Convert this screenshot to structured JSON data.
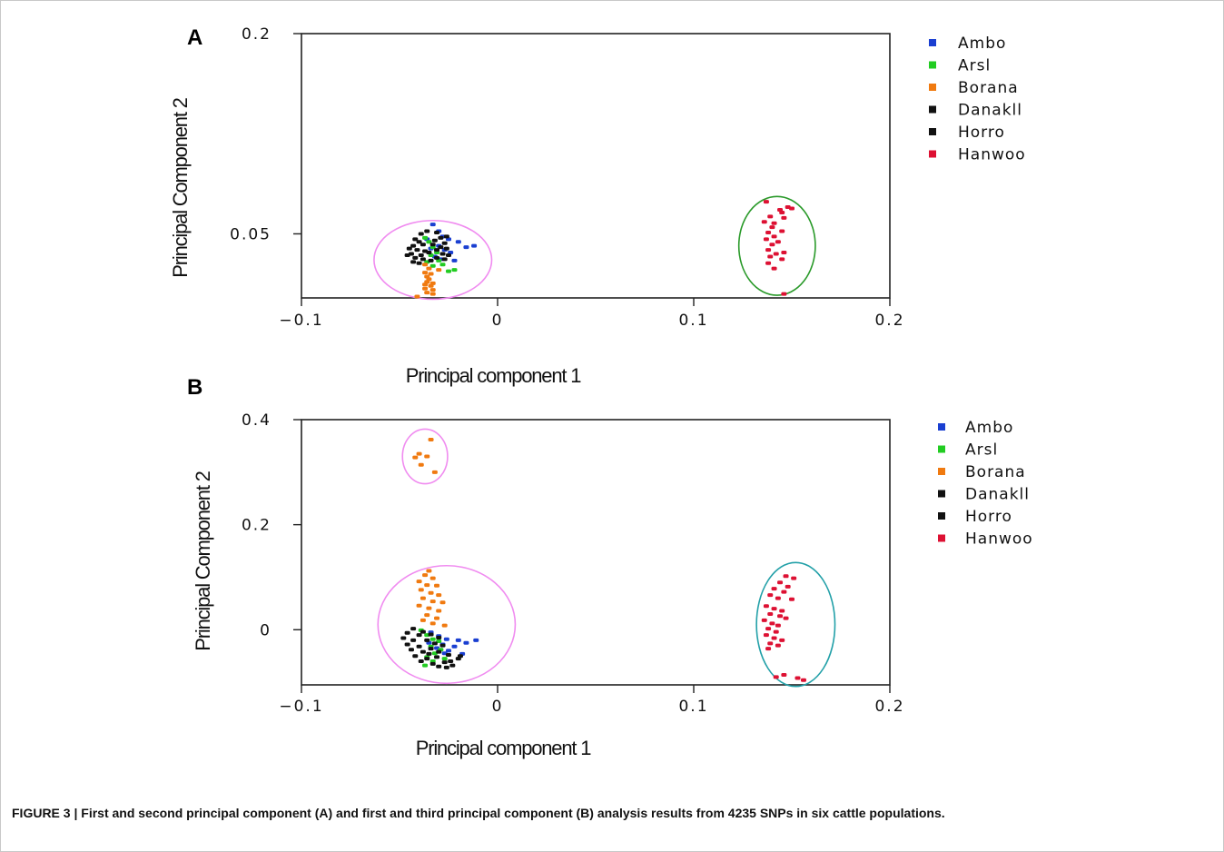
{
  "caption": "FIGURE 3 | First and second principal component (A) and first and third principal component (B) analysis results from 4235 SNPs in six cattle populations.",
  "chart_data": [
    {
      "type": "scatter",
      "panel": "A",
      "xlabel": "Principal component 1",
      "ylabel": "Principal Component 2",
      "xlim": [
        -0.1,
        0.2
      ],
      "ylim": [
        0.002,
        0.2
      ],
      "xticks": [
        "-0.1",
        "0",
        "0.1",
        "0.2"
      ],
      "yticks": [
        "0.2",
        "0.05"
      ],
      "ytick_values": [
        0.2,
        0.05
      ],
      "legend_position": "right",
      "series": [
        {
          "name": "Ambo",
          "color": "#1a3fd1",
          "points": [
            [
              -0.033,
              0.057
            ],
            [
              -0.03,
              0.052
            ],
            [
              -0.028,
              0.048
            ],
            [
              -0.025,
              0.046
            ],
            [
              -0.02,
              0.044
            ],
            [
              -0.012,
              0.041
            ],
            [
              -0.016,
              0.04
            ],
            [
              -0.03,
              0.041
            ],
            [
              -0.034,
              0.039
            ],
            [
              -0.027,
              0.038
            ],
            [
              -0.024,
              0.036
            ],
            [
              -0.032,
              0.033
            ],
            [
              -0.029,
              0.031
            ],
            [
              -0.022,
              0.03
            ],
            [
              -0.036,
              0.046
            ]
          ]
        },
        {
          "name": "Arsl",
          "color": "#22cc22",
          "points": [
            [
              -0.037,
              0.047
            ],
            [
              -0.035,
              0.044
            ],
            [
              -0.033,
              0.04
            ],
            [
              -0.031,
              0.036
            ],
            [
              -0.03,
              0.03
            ],
            [
              -0.036,
              0.029
            ],
            [
              -0.033,
              0.026
            ],
            [
              -0.028,
              0.027
            ],
            [
              -0.022,
              0.023
            ],
            [
              -0.025,
              0.022
            ],
            [
              -0.034,
              0.034
            ]
          ]
        },
        {
          "name": "Borana",
          "color": "#f07a10",
          "points": [
            [
              -0.037,
              0.027
            ],
            [
              -0.035,
              0.024
            ],
            [
              -0.03,
              0.023
            ],
            [
              -0.037,
              0.021
            ],
            [
              -0.034,
              0.02
            ],
            [
              -0.036,
              0.018
            ],
            [
              -0.035,
              0.016
            ],
            [
              -0.036,
              0.014
            ],
            [
              -0.033,
              0.013
            ],
            [
              -0.037,
              0.012
            ],
            [
              -0.034,
              0.011
            ],
            [
              -0.037,
              0.009
            ],
            [
              -0.033,
              0.008
            ],
            [
              -0.036,
              0.006
            ],
            [
              -0.033,
              0.005
            ],
            [
              -0.041,
              0.003
            ]
          ]
        },
        {
          "name": "Danakll",
          "color": "#111111",
          "points": [
            [
              -0.036,
              0.052
            ],
            [
              -0.039,
              0.05
            ],
            [
              -0.026,
              0.048
            ],
            [
              -0.042,
              0.046
            ],
            [
              -0.04,
              0.044
            ],
            [
              -0.038,
              0.042
            ],
            [
              -0.043,
              0.041
            ],
            [
              -0.041,
              0.038
            ],
            [
              -0.037,
              0.037
            ],
            [
              -0.044,
              0.035
            ],
            [
              -0.039,
              0.034
            ],
            [
              -0.035,
              0.036
            ],
            [
              -0.042,
              0.032
            ],
            [
              -0.038,
              0.031
            ],
            [
              -0.043,
              0.029
            ],
            [
              -0.04,
              0.028
            ]
          ]
        },
        {
          "name": "Horro",
          "color": "#111111",
          "points": [
            [
              -0.031,
              0.051
            ],
            [
              -0.029,
              0.047
            ],
            [
              -0.032,
              0.045
            ],
            [
              -0.027,
              0.043
            ],
            [
              -0.033,
              0.042
            ],
            [
              -0.029,
              0.04
            ],
            [
              -0.026,
              0.039
            ],
            [
              -0.031,
              0.038
            ],
            [
              -0.028,
              0.035
            ],
            [
              -0.025,
              0.034
            ],
            [
              -0.031,
              0.032
            ],
            [
              -0.027,
              0.031
            ],
            [
              -0.034,
              0.03
            ],
            [
              -0.045,
              0.039
            ],
            [
              -0.046,
              0.034
            ]
          ]
        },
        {
          "name": "Hanwoo",
          "color": "#dd1133",
          "points": [
            [
              0.137,
              0.074
            ],
            [
              0.148,
              0.07
            ],
            [
              0.144,
              0.068
            ],
            [
              0.15,
              0.069
            ],
            [
              0.145,
              0.066
            ],
            [
              0.139,
              0.063
            ],
            [
              0.146,
              0.062
            ],
            [
              0.136,
              0.059
            ],
            [
              0.141,
              0.058
            ],
            [
              0.14,
              0.055
            ],
            [
              0.145,
              0.052
            ],
            [
              0.138,
              0.051
            ],
            [
              0.141,
              0.048
            ],
            [
              0.137,
              0.046
            ],
            [
              0.143,
              0.044
            ],
            [
              0.14,
              0.042
            ],
            [
              0.138,
              0.038
            ],
            [
              0.146,
              0.036
            ],
            [
              0.142,
              0.035
            ],
            [
              0.139,
              0.033
            ],
            [
              0.145,
              0.031
            ],
            [
              0.138,
              0.028
            ],
            [
              0.141,
              0.024
            ],
            [
              0.146,
              0.005
            ]
          ]
        }
      ],
      "ellipses": [
        {
          "color": "#f08cf0",
          "cx": -0.033,
          "cy": 0.0305,
          "rx": 0.03,
          "ry": 0.0295
        },
        {
          "color": "#2a9a2a",
          "cx": 0.1425,
          "cy": 0.041,
          "rx": 0.0195,
          "ry": 0.037
        }
      ]
    },
    {
      "type": "scatter",
      "panel": "B",
      "xlabel": "Principal component 1",
      "ylabel": "Principal Component 2",
      "xlim": [
        -0.1,
        0.2
      ],
      "ylim": [
        -0.105,
        0.4
      ],
      "xticks": [
        "-0.1",
        "0",
        "0.1",
        "0.2"
      ],
      "yticks": [
        "0.4",
        "0.2",
        "0"
      ],
      "ytick_values": [
        0.4,
        0.2,
        0.0
      ],
      "legend_position": "right",
      "series": [
        {
          "name": "Ambo",
          "color": "#1a3fd1",
          "points": [
            [
              -0.034,
              -0.005
            ],
            [
              -0.03,
              -0.012
            ],
            [
              -0.026,
              -0.018
            ],
            [
              -0.02,
              -0.02
            ],
            [
              -0.016,
              -0.025
            ],
            [
              -0.011,
              -0.02
            ],
            [
              -0.028,
              -0.028
            ],
            [
              -0.022,
              -0.032
            ],
            [
              -0.031,
              -0.035
            ],
            [
              -0.025,
              -0.04
            ],
            [
              -0.018,
              -0.046
            ],
            [
              -0.035,
              -0.025
            ],
            [
              -0.027,
              -0.045
            ]
          ]
        },
        {
          "name": "Arsl",
          "color": "#22cc22",
          "points": [
            [
              -0.039,
              -0.001
            ],
            [
              -0.036,
              -0.01
            ],
            [
              -0.033,
              -0.018
            ],
            [
              -0.03,
              -0.022
            ],
            [
              -0.034,
              -0.032
            ],
            [
              -0.029,
              -0.038
            ],
            [
              -0.032,
              -0.045
            ],
            [
              -0.036,
              -0.052
            ],
            [
              -0.027,
              -0.055
            ],
            [
              -0.033,
              -0.06
            ],
            [
              -0.037,
              -0.068
            ]
          ]
        },
        {
          "name": "Borana",
          "color": "#f07a10",
          "points": [
            [
              -0.034,
              0.362
            ],
            [
              -0.04,
              0.335
            ],
            [
              -0.036,
              0.33
            ],
            [
              -0.042,
              0.328
            ],
            [
              -0.039,
              0.314
            ],
            [
              -0.032,
              0.3
            ],
            [
              -0.035,
              0.112
            ],
            [
              -0.037,
              0.104
            ],
            [
              -0.033,
              0.098
            ],
            [
              -0.04,
              0.092
            ],
            [
              -0.036,
              0.085
            ],
            [
              -0.031,
              0.084
            ],
            [
              -0.039,
              0.076
            ],
            [
              -0.034,
              0.07
            ],
            [
              -0.03,
              0.066
            ],
            [
              -0.038,
              0.06
            ],
            [
              -0.033,
              0.054
            ],
            [
              -0.028,
              0.052
            ],
            [
              -0.04,
              0.046
            ],
            [
              -0.035,
              0.041
            ],
            [
              -0.03,
              0.036
            ],
            [
              -0.036,
              0.028
            ],
            [
              -0.031,
              0.022
            ],
            [
              -0.038,
              0.018
            ],
            [
              -0.033,
              0.012
            ],
            [
              -0.027,
              0.008
            ]
          ]
        },
        {
          "name": "Danakll",
          "color": "#111111",
          "points": [
            [
              -0.043,
              0.002
            ],
            [
              -0.046,
              -0.006
            ],
            [
              -0.04,
              -0.01
            ],
            [
              -0.048,
              -0.016
            ],
            [
              -0.043,
              -0.02
            ],
            [
              -0.046,
              -0.028
            ],
            [
              -0.04,
              -0.032
            ],
            [
              -0.044,
              -0.038
            ],
            [
              -0.038,
              -0.042
            ],
            [
              -0.042,
              -0.05
            ],
            [
              -0.036,
              -0.055
            ],
            [
              -0.039,
              -0.06
            ],
            [
              -0.033,
              -0.065
            ],
            [
              -0.03,
              -0.07
            ],
            [
              -0.026,
              -0.072
            ],
            [
              -0.023,
              -0.068
            ],
            [
              -0.027,
              -0.062
            ]
          ]
        },
        {
          "name": "Horro",
          "color": "#111111",
          "points": [
            [
              -0.038,
              -0.004
            ],
            [
              -0.034,
              -0.009
            ],
            [
              -0.03,
              -0.015
            ],
            [
              -0.036,
              -0.02
            ],
            [
              -0.032,
              -0.026
            ],
            [
              -0.028,
              -0.03
            ],
            [
              -0.034,
              -0.036
            ],
            [
              -0.03,
              -0.042
            ],
            [
              -0.025,
              -0.048
            ],
            [
              -0.031,
              -0.052
            ],
            [
              -0.02,
              -0.055
            ],
            [
              -0.024,
              -0.06
            ],
            [
              -0.019,
              -0.05
            ],
            [
              -0.035,
              -0.046
            ]
          ]
        },
        {
          "name": "Hanwoo",
          "color": "#dd1133",
          "points": [
            [
              0.147,
              0.102
            ],
            [
              0.151,
              0.098
            ],
            [
              0.144,
              0.09
            ],
            [
              0.148,
              0.082
            ],
            [
              0.141,
              0.078
            ],
            [
              0.146,
              0.072
            ],
            [
              0.139,
              0.066
            ],
            [
              0.143,
              0.06
            ],
            [
              0.15,
              0.058
            ],
            [
              0.137,
              0.045
            ],
            [
              0.141,
              0.04
            ],
            [
              0.145,
              0.036
            ],
            [
              0.139,
              0.03
            ],
            [
              0.144,
              0.026
            ],
            [
              0.147,
              0.022
            ],
            [
              0.136,
              0.018
            ],
            [
              0.14,
              0.012
            ],
            [
              0.143,
              0.008
            ],
            [
              0.138,
              0.002
            ],
            [
              0.142,
              -0.004
            ],
            [
              0.137,
              -0.01
            ],
            [
              0.141,
              -0.016
            ],
            [
              0.145,
              -0.02
            ],
            [
              0.139,
              -0.026
            ],
            [
              0.143,
              -0.03
            ],
            [
              0.138,
              -0.036
            ],
            [
              0.146,
              -0.086
            ],
            [
              0.142,
              -0.09
            ],
            [
              0.153,
              -0.092
            ],
            [
              0.156,
              -0.096
            ]
          ]
        }
      ],
      "ellipses": [
        {
          "color": "#f08cf0",
          "cx": -0.037,
          "cy": 0.33,
          "rx": 0.0115,
          "ry": 0.052
        },
        {
          "color": "#f08cf0",
          "cx": -0.026,
          "cy": 0.01,
          "rx": 0.035,
          "ry": 0.112
        },
        {
          "color": "#22a0a8",
          "cx": 0.152,
          "cy": 0.01,
          "rx": 0.02,
          "ry": 0.118
        }
      ]
    }
  ]
}
